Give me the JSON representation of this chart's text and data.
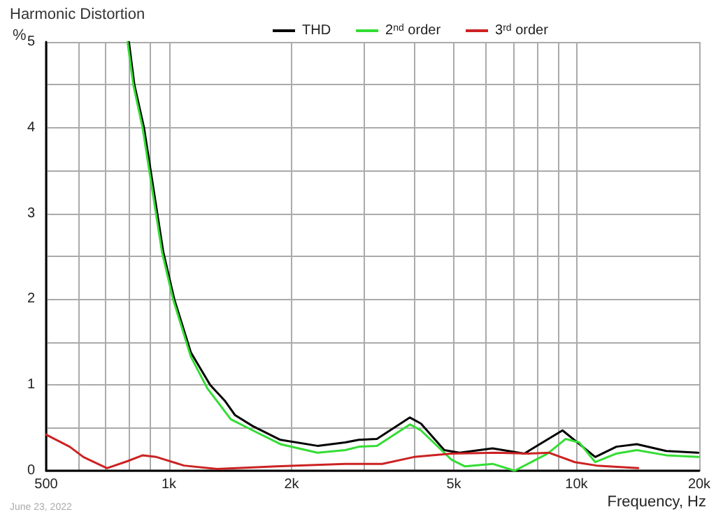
{
  "chart_data": {
    "type": "line",
    "title": "Harmonic Distortion",
    "xlabel": "Frequency, Hz",
    "ylabel": "%",
    "annotations": [
      "June 23, 2022"
    ],
    "log": "x",
    "grid": true,
    "legend": "top",
    "marker": "none",
    "line_style": "solid",
    "xlim": [
      500,
      20000
    ],
    "xticks": [
      {
        "value": 500,
        "label": "500"
      },
      {
        "value": 600,
        "label": null
      },
      {
        "value": 700,
        "label": null
      },
      {
        "value": 800,
        "label": null
      },
      {
        "value": 900,
        "label": null
      },
      {
        "value": 1000,
        "label": "1k"
      },
      {
        "value": 2000,
        "label": "2k"
      },
      {
        "value": 3000,
        "label": null
      },
      {
        "value": 4000,
        "label": null
      },
      {
        "value": 5000,
        "label": "5k"
      },
      {
        "value": 6000,
        "label": null
      },
      {
        "value": 7000,
        "label": null
      },
      {
        "value": 8000,
        "label": null
      },
      {
        "value": 9000,
        "label": null
      },
      {
        "value": 10000,
        "label": "10k"
      },
      {
        "value": 20000,
        "label": "20k"
      }
    ],
    "ylim": [
      0,
      5
    ],
    "yticks": [
      0,
      {
        "value": 0.5,
        "label": null
      },
      1,
      {
        "value": 1.5,
        "label": null
      },
      2,
      {
        "value": 2.5,
        "label": null
      },
      3,
      {
        "value": 3.5,
        "label": null
      },
      4,
      {
        "value": 4.5,
        "label": null
      },
      5
    ],
    "series": [
      {
        "name": "THD",
        "color": "#000000",
        "x": [
          798,
          823,
          869,
          969,
          1031,
          1132,
          1263,
          1375,
          1452,
          1606,
          1878,
          2315,
          2706,
          2925,
          3238,
          3902,
          4153,
          4738,
          5168,
          6223,
          7447,
          9240,
          11118,
          12528,
          14060,
          16600,
          19900
        ],
        "values": [
          5.0,
          4.5,
          4.0,
          2.55,
          2.0,
          1.38,
          1.0,
          0.81,
          0.65,
          0.52,
          0.36,
          0.29,
          0.33,
          0.36,
          0.37,
          0.62,
          0.55,
          0.24,
          0.21,
          0.26,
          0.2,
          0.47,
          0.16,
          0.28,
          0.31,
          0.23,
          0.21
        ]
      },
      {
        "name": "2$^{nd}$ order",
        "color": "#33dd33",
        "x": [
          792,
          818,
          862,
          962,
          1024,
          1132,
          1243,
          1419,
          1606,
          1878,
          2315,
          2706,
          2925,
          3238,
          3902,
          4153,
          4930,
          5327,
          6223,
          7050,
          8500,
          9400,
          10150,
          11118,
          12528,
          14060,
          16600,
          19900
        ],
        "values": [
          5.0,
          4.5,
          4.0,
          2.55,
          2.0,
          1.33,
          0.96,
          0.6,
          0.47,
          0.31,
          0.21,
          0.24,
          0.28,
          0.29,
          0.54,
          0.47,
          0.13,
          0.05,
          0.08,
          0.0,
          0.2,
          0.37,
          0.33,
          0.1,
          0.2,
          0.24,
          0.18,
          0.16
        ]
      },
      {
        "name": "3$^{rd}$ order",
        "color": "#cc2222",
        "x": [
          500,
          571,
          617,
          705,
          790,
          863,
          932,
          1089,
          1313,
          1834,
          2706,
          3338,
          3993,
          4930,
          6370,
          7620,
          8550,
          9910,
          11200,
          14170
        ],
        "values": [
          0.42,
          0.28,
          0.16,
          0.03,
          0.11,
          0.18,
          0.16,
          0.06,
          0.02,
          0.05,
          0.08,
          0.08,
          0.16,
          0.2,
          0.21,
          0.2,
          0.21,
          0.1,
          0.06,
          0.03
        ]
      }
    ]
  }
}
